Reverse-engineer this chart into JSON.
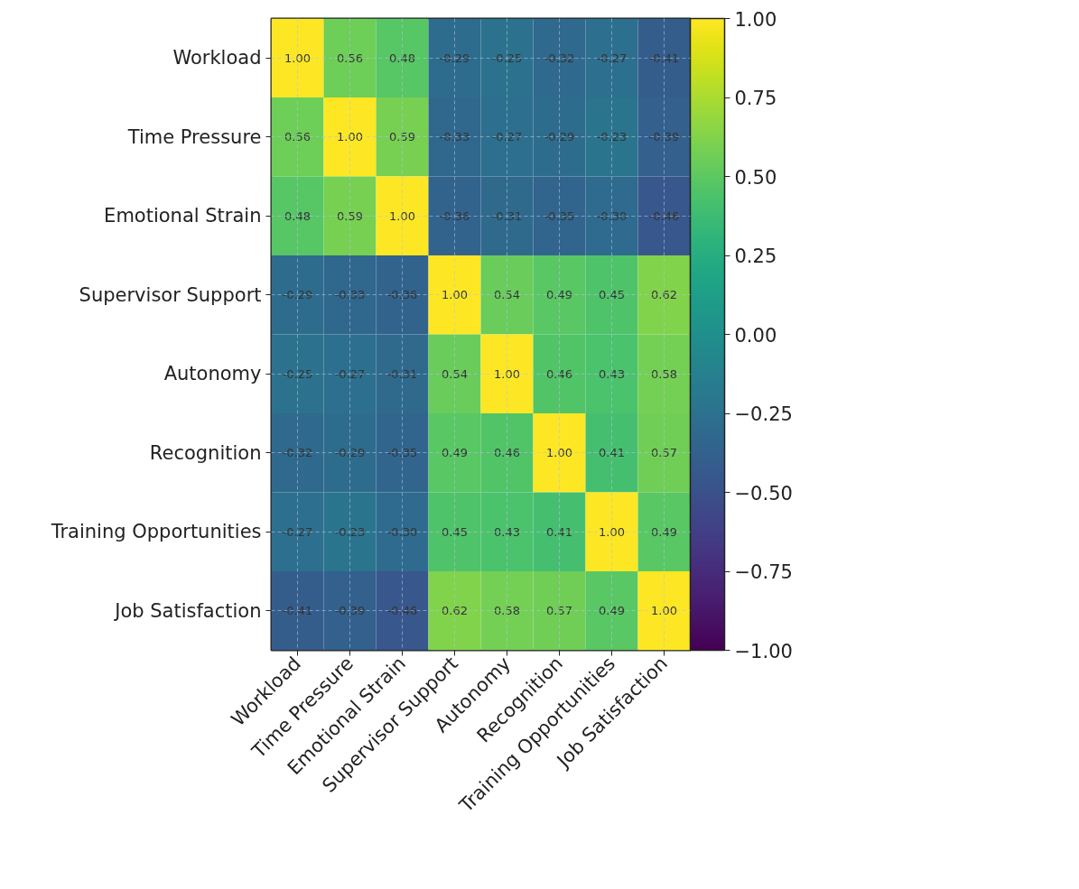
{
  "chart_data": {
    "type": "heatmap",
    "categories": [
      "Workload",
      "Time Pressure",
      "Emotional Strain",
      "Supervisor Support",
      "Autonomy",
      "Recognition",
      "Training Opportunities",
      "Job Satisfaction"
    ],
    "y_categories": [
      "Workload",
      "Time Pressure",
      "Emotional Strain",
      "Supervisor Support",
      "Autonomy",
      "Recognition",
      "Training Opportunities",
      "Job Satisfaction"
    ],
    "cells": [
      [
        1.0,
        0.56,
        0.48,
        -0.29,
        -0.25,
        -0.32,
        -0.27,
        -0.41
      ],
      [
        0.56,
        1.0,
        0.59,
        -0.33,
        -0.27,
        -0.29,
        -0.23,
        -0.39
      ],
      [
        0.48,
        0.59,
        1.0,
        -0.36,
        -0.31,
        -0.35,
        -0.3,
        -0.46
      ],
      [
        -0.29,
        -0.33,
        -0.36,
        1.0,
        0.54,
        0.49,
        0.45,
        0.62
      ],
      [
        -0.25,
        -0.27,
        -0.31,
        0.54,
        1.0,
        0.46,
        0.43,
        0.58
      ],
      [
        -0.32,
        -0.29,
        -0.35,
        0.49,
        0.46,
        1.0,
        0.41,
        0.57
      ],
      [
        -0.27,
        -0.23,
        -0.3,
        0.45,
        0.43,
        0.41,
        1.0,
        0.49
      ],
      [
        -0.41,
        -0.39,
        -0.46,
        0.62,
        0.58,
        0.57,
        0.49,
        1.0
      ]
    ],
    "clim": [
      -1,
      1
    ],
    "cticks": [
      {
        "value": -1,
        "label": "−1.00"
      },
      {
        "value": -0.75,
        "label": "−0.75"
      },
      {
        "value": -0.5,
        "label": "−0.50"
      },
      {
        "value": -0.25,
        "label": "−0.25"
      },
      {
        "value": 0,
        "label": "0.00"
      },
      {
        "value": 0.25,
        "label": "0.25"
      },
      {
        "value": 0.5,
        "label": "0.50"
      },
      {
        "value": 0.75,
        "label": "0.75"
      },
      {
        "value": 1,
        "label": "1.00"
      }
    ],
    "cell_labels": [
      [
        "1.00",
        "0.56",
        "0.48",
        "-0.29",
        "-0.25",
        "-0.32",
        "-0.27",
        "-0.41"
      ],
      [
        "0.56",
        "1.00",
        "0.59",
        "-0.33",
        "-0.27",
        "-0.29",
        "-0.23",
        "-0.39"
      ],
      [
        "0.48",
        "0.59",
        "1.00",
        "-0.36",
        "-0.31",
        "-0.35",
        "-0.30",
        "-0.46"
      ],
      [
        "-0.29",
        "-0.33",
        "-0.36",
        "1.00",
        "0.54",
        "0.49",
        "0.45",
        "0.62"
      ],
      [
        "-0.25",
        "-0.27",
        "-0.31",
        "0.54",
        "1.00",
        "0.46",
        "0.43",
        "0.58"
      ],
      [
        "-0.32",
        "-0.29",
        "-0.35",
        "0.49",
        "0.46",
        "1.00",
        "0.41",
        "0.57"
      ],
      [
        "-0.27",
        "-0.23",
        "-0.30",
        "0.45",
        "0.43",
        "0.41",
        "1.00",
        "0.49"
      ],
      [
        "-0.41",
        "-0.39",
        "-0.46",
        "0.62",
        "0.58",
        "0.57",
        "0.49",
        "1.00"
      ]
    ],
    "grid": true
  }
}
